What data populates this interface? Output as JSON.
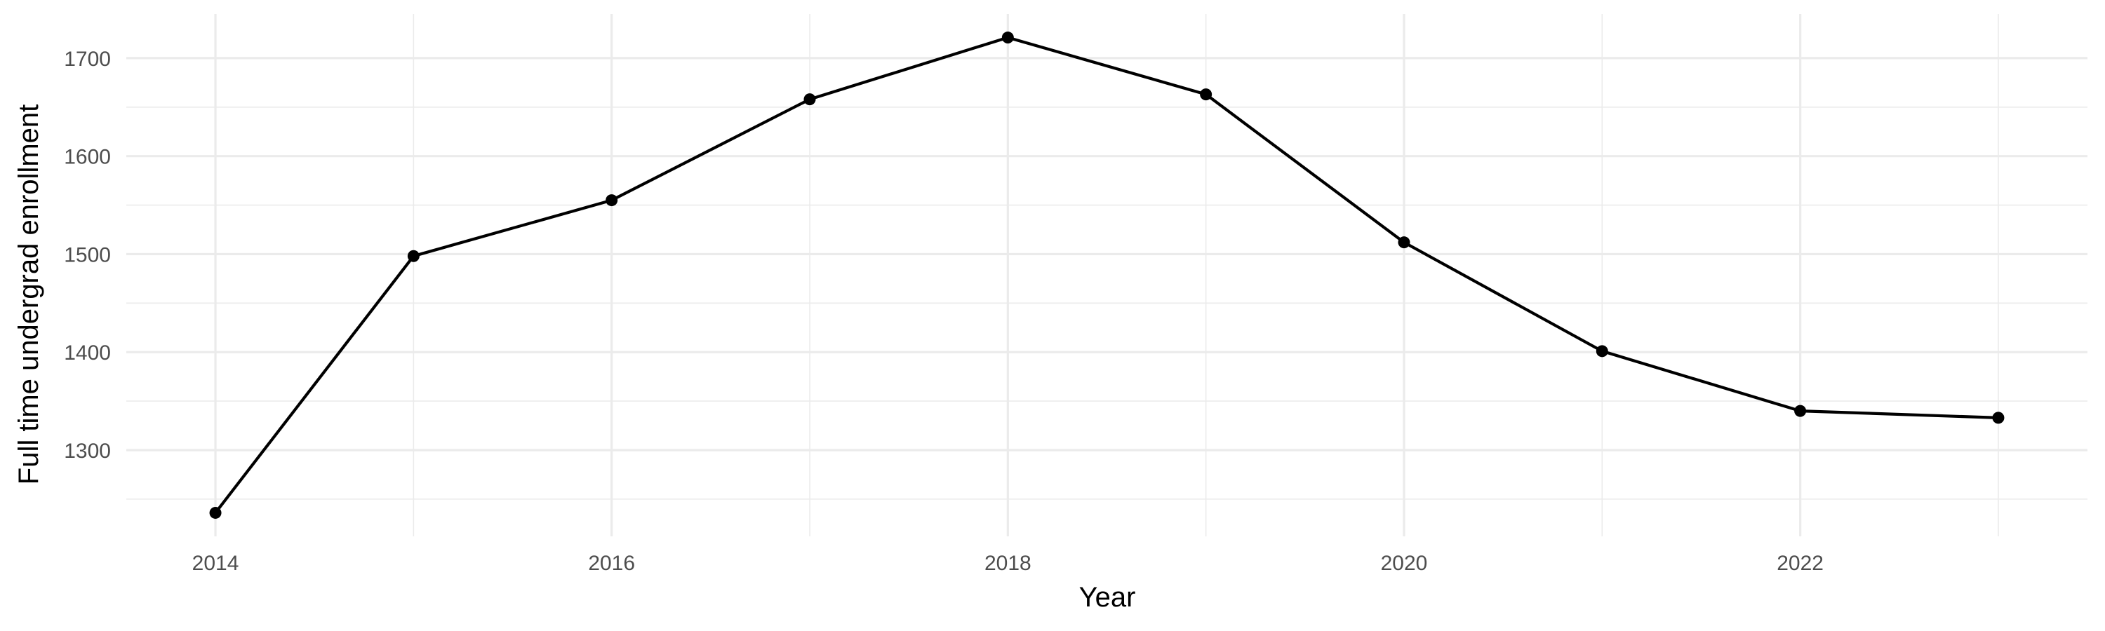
{
  "chart_data": {
    "type": "line",
    "title": "",
    "xlabel": "Year",
    "ylabel": "Full time undergrad enrollment",
    "x": [
      2014,
      2015,
      2016,
      2017,
      2018,
      2019,
      2020,
      2021,
      2022,
      2023
    ],
    "series": [
      {
        "values": [
          1236,
          1498,
          1555,
          1658,
          1721,
          1663,
          1512,
          1401,
          1340,
          1333
        ],
        "color": "#000000"
      }
    ],
    "xlim": [
      2013.55,
      2023.45
    ],
    "ylim": [
      1212,
      1745
    ],
    "x_ticks": [
      2014,
      2016,
      2018,
      2020,
      2022
    ],
    "x_tick_labels": [
      "2014",
      "2016",
      "2018",
      "2020",
      "2022"
    ],
    "x_minor_ticks": [
      2015,
      2017,
      2019,
      2021,
      2023
    ],
    "y_ticks": [
      1300,
      1400,
      1500,
      1600,
      1700
    ],
    "y_tick_labels": [
      "1300",
      "1400",
      "1500",
      "1600",
      "1700"
    ],
    "y_minor_ticks": [
      1250,
      1350,
      1450,
      1550,
      1650
    ],
    "grid": true,
    "legend": "none",
    "colors": {
      "background": "#ffffff",
      "grid": "#ebebeb",
      "tick_text": "#4d4d4d",
      "axis_title": "#000000"
    }
  }
}
